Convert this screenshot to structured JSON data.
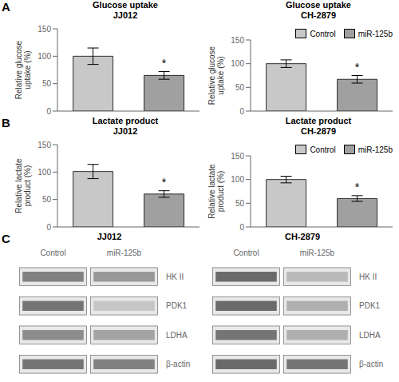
{
  "chart_data": [
    {
      "type": "bar",
      "panel_label": "A",
      "title": "Glucose uptake\nJJ012",
      "ylabel": "Relative glucose\nuptake (%)",
      "categories": [
        "Control",
        "miR-125b"
      ],
      "values": [
        100,
        65
      ],
      "errors": [
        15,
        7
      ],
      "colors": [
        "#c8c8c8",
        "#a0a0a0"
      ],
      "ylim": [
        0,
        150
      ],
      "yticks": [
        0,
        50,
        100,
        150
      ],
      "tick_labels": "y",
      "annotations": [
        {
          "category": "miR-125b",
          "text": "*"
        }
      ]
    },
    {
      "type": "bar",
      "title": "Glucose uptake\nCH-2879",
      "ylabel": "Relative glucose\nuptake (%)",
      "categories": [
        "Control",
        "miR-125b"
      ],
      "values": [
        100,
        67
      ],
      "errors": [
        8,
        8
      ],
      "colors": [
        "#c8c8c8",
        "#a0a0a0"
      ],
      "ylim": [
        0,
        150
      ],
      "yticks": [
        0,
        50,
        100,
        150
      ],
      "tick_labels": "y",
      "legend": "upper right",
      "annotations": [
        {
          "category": "miR-125b",
          "text": "*"
        }
      ]
    },
    {
      "type": "bar",
      "panel_label": "B",
      "title": "Lactate product\nJJ012",
      "ylabel": "Relative lactate\nproduct (%)",
      "categories": [
        "Control",
        "miR-125b"
      ],
      "values": [
        101,
        60
      ],
      "errors": [
        13,
        6
      ],
      "colors": [
        "#c8c8c8",
        "#a0a0a0"
      ],
      "ylim": [
        0,
        150
      ],
      "yticks": [
        0,
        50,
        100,
        150
      ],
      "tick_labels": "y",
      "annotations": [
        {
          "category": "miR-125b",
          "text": "*"
        }
      ]
    },
    {
      "type": "bar",
      "title": "Lactate product\nCH-2879",
      "ylabel": "Relative lactate\nproduct (%)",
      "categories": [
        "Control",
        "miR-125b"
      ],
      "values": [
        100,
        60
      ],
      "errors": [
        7,
        6
      ],
      "colors": [
        "#c8c8c8",
        "#a0a0a0"
      ],
      "ylim": [
        0,
        150
      ],
      "yticks": [
        0,
        50,
        100,
        150
      ],
      "tick_labels": "y",
      "legend": "upper right",
      "annotations": [
        {
          "category": "miR-125b",
          "text": "*"
        }
      ]
    },
    {
      "type": "heatmap",
      "panel_label": "C",
      "title": "JJ012",
      "x": [
        "Control",
        "miR-125b"
      ],
      "y": [
        "HK II",
        "PDK1",
        "LDHA",
        "β-actin"
      ],
      "values": [
        [
          0.55,
          0.45
        ],
        [
          0.6,
          0.25
        ],
        [
          0.5,
          0.4
        ],
        [
          0.6,
          0.55
        ]
      ]
    },
    {
      "type": "heatmap",
      "title": "CH-2879",
      "x": [
        "Control",
        "miR-125b"
      ],
      "y": [
        "HK II",
        "PDK1",
        "LDHA",
        "β-actin"
      ],
      "values": [
        [
          0.65,
          0.3
        ],
        [
          0.65,
          0.35
        ],
        [
          0.6,
          0.35
        ],
        [
          0.65,
          0.6
        ]
      ]
    }
  ]
}
